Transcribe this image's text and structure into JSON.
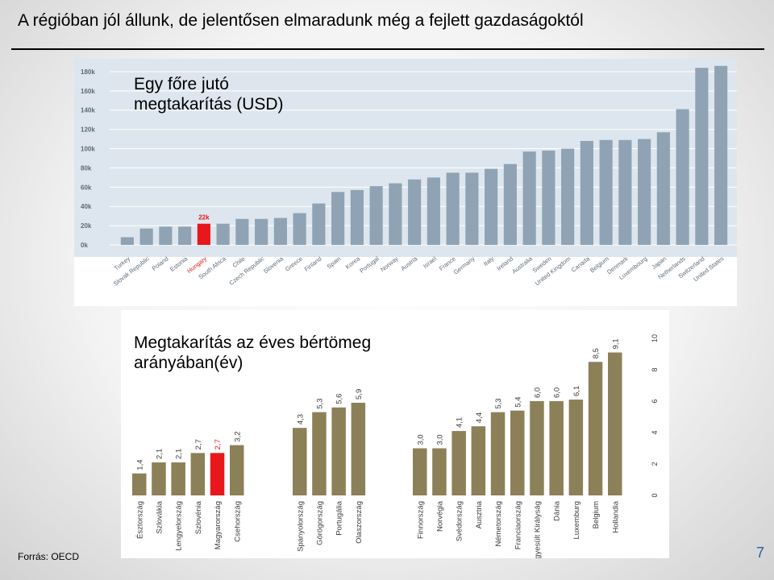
{
  "slide": {
    "title": "A régióban jól állunk, de jelentősen elmaradunk még a fejlett gazdaságoktól",
    "source": "Forrás: OECD",
    "page_number": "7"
  },
  "colors": {
    "chart1_bar": "#8fa3b4",
    "chart1_bg": "#dde6ee",
    "highlight": "#e8171c",
    "chart2_bar": "#8c8058",
    "highlight_label": "#e8171c"
  },
  "chart_data": [
    {
      "type": "bar",
      "title": "Egy főre jutó megtakarítás (USD)",
      "title_lines": [
        "Egy főre jutó",
        "megtakarítás (USD)"
      ],
      "categories": [
        "Turkey",
        "Slovak Republic",
        "Poland",
        "Estonia",
        "Hungary",
        "South Africa",
        "Chile",
        "Czech Republic",
        "Slovenia",
        "Greece",
        "Finland",
        "Spain",
        "Korea",
        "Portugal",
        "Norway",
        "Austria",
        "Israel",
        "France",
        "Germany",
        "Italy",
        "Ireland",
        "Australia",
        "Sweden",
        "United Kingdom",
        "Canada",
        "Belgium",
        "Denmark",
        "Luxembourg",
        "Japan",
        "Netherlands",
        "Switzerland",
        "United States"
      ],
      "values": [
        8000,
        17000,
        19000,
        19000,
        22000,
        22000,
        27000,
        27000,
        28000,
        33000,
        43000,
        55000,
        57000,
        61000,
        64000,
        68000,
        70000,
        75000,
        75000,
        79000,
        84000,
        97000,
        98000,
        100000,
        108000,
        109000,
        109000,
        110000,
        117000,
        141000,
        184000,
        186000
      ],
      "highlight_index": 4,
      "annotation": {
        "index": 4,
        "text": "22k"
      },
      "y_ticks": [
        "0k",
        "20k",
        "40k",
        "60k",
        "80k",
        "100k",
        "120k",
        "140k",
        "160k",
        "180k"
      ],
      "ylim": [
        0,
        190000
      ],
      "xlabel": "",
      "ylabel": "",
      "grid": true
    },
    {
      "type": "bar",
      "title": "Megtakarítás az éves bértömeg arányában(év)",
      "title_lines": [
        "Megtakarítás az éves bértömeg",
        "arányában(év)"
      ],
      "groups": [
        {
          "categories": [
            "Észtország",
            "Szlovákia",
            "Lengyelország",
            "Szlovénia",
            "Magyarország",
            "Csehország"
          ],
          "values": [
            1.4,
            2.1,
            2.1,
            2.7,
            2.7,
            3.2
          ],
          "labels": [
            "1,4",
            "2,1",
            "2,1",
            "2,7",
            "2,7",
            "3,2"
          ]
        },
        {
          "categories": [
            "Spanyolország",
            "Görögország",
            "Portugália",
            "Olaszország"
          ],
          "values": [
            4.3,
            5.3,
            5.6,
            5.9
          ],
          "labels": [
            "4,3",
            "5,3",
            "5,6",
            "5,9"
          ]
        },
        {
          "categories": [
            "Finnország",
            "Norvégia",
            "Svédország",
            "Ausztria",
            "Németország",
            "Franciaország",
            "Egyesült Királyság",
            "Dánia",
            "Luxemburg",
            "Belgium",
            "Hollandia"
          ],
          "values": [
            3.0,
            3.0,
            4.1,
            4.4,
            5.3,
            5.4,
            6.0,
            6.0,
            6.1,
            8.5,
            9.1
          ],
          "labels": [
            "3,0",
            "3,0",
            "4,1",
            "4,4",
            "5,3",
            "5,4",
            "6,0",
            "6,0",
            "6,1",
            "8,5",
            "9,1"
          ]
        }
      ],
      "highlight": {
        "group": 0,
        "index": 4
      },
      "y_ticks": [
        "0",
        "2",
        "4",
        "6",
        "8",
        "10"
      ],
      "ylim": [
        0,
        10
      ],
      "grid": false
    }
  ]
}
